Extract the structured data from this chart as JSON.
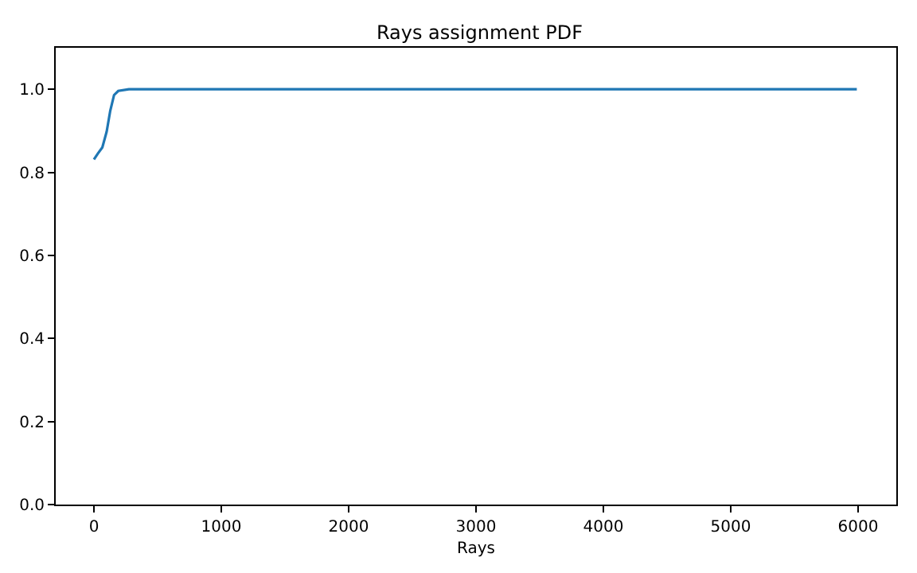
{
  "chart_data": {
    "type": "line",
    "title": "Rays assignment PDF",
    "xlabel": "Rays",
    "x": [
      0,
      30,
      66,
      100,
      128,
      158,
      191,
      274,
      1000,
      3000,
      5990
    ],
    "series": [
      {
        "color": "#1f77b4",
        "values": [
          0.831,
          0.845,
          0.86,
          0.898,
          0.948,
          0.986,
          0.996,
          1.0,
          1.0,
          1.0,
          1.0
        ]
      }
    ],
    "xlim": [
      -300,
      6300
    ],
    "xticks": [
      0,
      1000,
      2000,
      3000,
      4000,
      5000,
      6000
    ],
    "ylim": [
      0,
      1.1
    ],
    "yticks": [
      {
        "value": 0,
        "label": "0.0"
      },
      {
        "value": 0.2,
        "label": "0.2"
      },
      {
        "value": 0.4,
        "label": "0.4"
      },
      {
        "value": 0.6,
        "label": "0.6"
      },
      {
        "value": 0.8,
        "label": "0.8"
      },
      {
        "value": 1.0,
        "label": "1.0"
      }
    ],
    "grid": false
  }
}
